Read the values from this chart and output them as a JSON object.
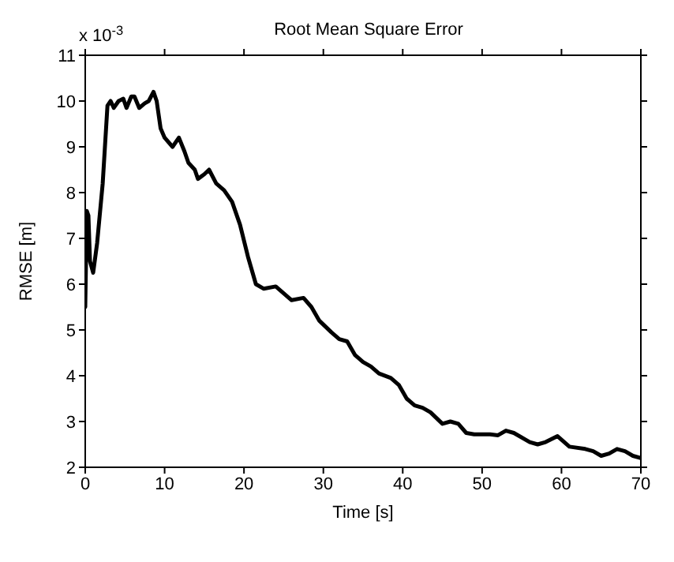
{
  "chart_data": {
    "type": "line",
    "title": "Root Mean Square Error",
    "xlabel": "Time [s]",
    "ylabel": "RMSE [m]",
    "annotations": [
      "x 10$^{-3}$"
    ],
    "x": [
      0,
      0.2,
      0.4,
      0.6,
      1.0,
      1.5,
      2.2,
      2.8,
      3.2,
      3.6,
      4.2,
      4.8,
      5.2,
      5.8,
      6.2,
      6.8,
      7.5,
      8.0,
      8.6,
      9.0,
      9.5,
      10,
      11,
      11.8,
      12.5,
      13,
      13.8,
      14.2,
      15,
      15.6,
      16.5,
      17.5,
      18.5,
      19.5,
      20.5,
      21.5,
      22.5,
      24,
      25,
      26,
      27.5,
      28.5,
      29.5,
      31,
      32,
      33,
      34,
      35,
      36,
      37,
      38.5,
      39.5,
      40.5,
      41.5,
      42.5,
      43.5,
      45,
      46,
      47,
      48,
      49,
      51,
      52,
      53,
      54,
      56,
      57,
      58,
      59.5,
      61,
      63,
      64,
      65,
      66,
      67,
      68,
      69,
      70
    ],
    "series": [
      {
        "color": "#000000",
        "values": [
          5.5,
          7.6,
          7.5,
          6.5,
          6.25,
          6.9,
          8.2,
          9.9,
          10,
          9.85,
          10,
          10.05,
          9.85,
          10.1,
          10.1,
          9.85,
          9.95,
          10.0,
          10.2,
          10.0,
          9.4,
          9.2,
          9.0,
          9.2,
          8.9,
          8.65,
          8.5,
          8.3,
          8.4,
          8.5,
          8.2,
          8.05,
          7.8,
          7.3,
          6.6,
          6.0,
          5.9,
          5.95,
          5.8,
          5.65,
          5.7,
          5.5,
          5.2,
          4.95,
          4.8,
          4.75,
          4.45,
          4.3,
          4.2,
          4.05,
          3.95,
          3.8,
          3.5,
          3.35,
          3.3,
          3.2,
          2.95,
          3.0,
          2.95,
          2.75,
          2.72,
          2.72,
          2.7,
          2.8,
          2.75,
          2.55,
          2.5,
          2.55,
          2.68,
          2.45,
          2.4,
          2.35,
          2.25,
          2.3,
          2.4,
          2.35,
          2.25,
          2.2
        ]
      }
    ],
    "xlim": [
      0,
      70
    ],
    "xticks": [
      0,
      10,
      20,
      30,
      40,
      50,
      60,
      70
    ],
    "ylim": [
      2,
      11
    ],
    "yticks": [
      2,
      3,
      4,
      5,
      6,
      7,
      8,
      9,
      10,
      11
    ],
    "grid": false,
    "legend": false,
    "marker": "none",
    "line_style": "solid"
  }
}
